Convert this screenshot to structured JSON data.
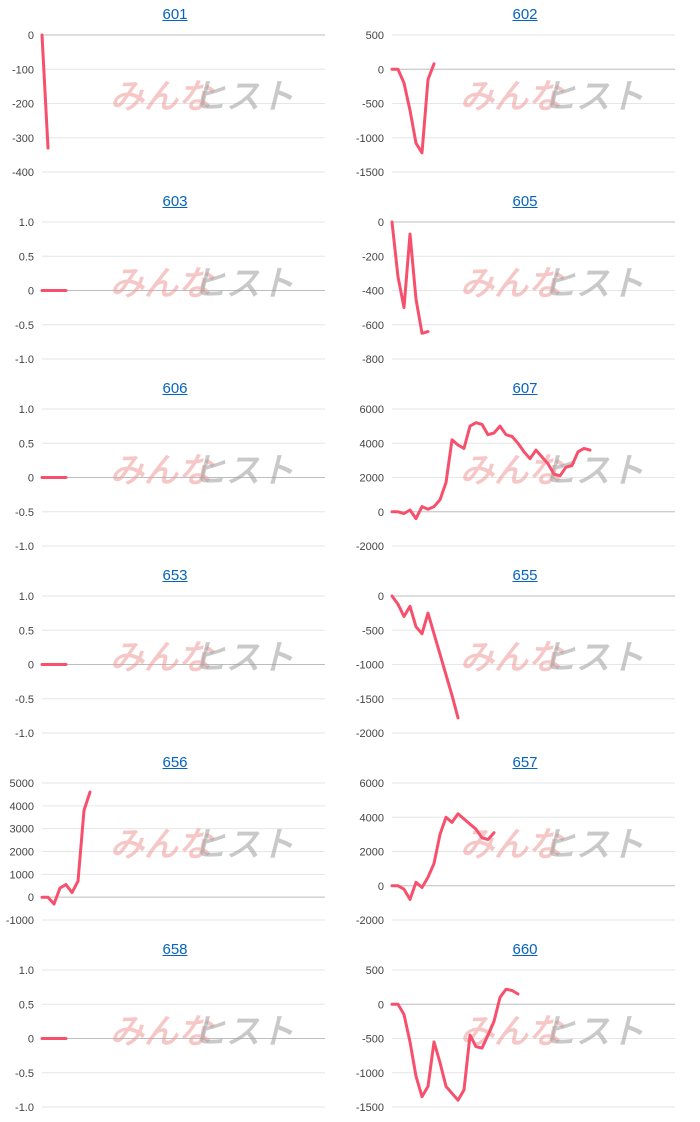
{
  "watermark": {
    "left_text": "みんな",
    "right_text": "ヒスト",
    "left_color": "#ef9a9a",
    "right_color": "#9e9e9e"
  },
  "colors": {
    "series": "#f7506d",
    "title_link": "#0563c1",
    "grid": "#e6e6e6"
  },
  "chart_data": [
    {
      "type": "line",
      "title": "601",
      "ylim": [
        -400,
        0
      ],
      "yticks": [
        0,
        -100,
        -200,
        -300,
        -400
      ],
      "x": [
        1,
        2
      ],
      "series": [
        {
          "values": [
            0,
            -330
          ]
        }
      ]
    },
    {
      "type": "line",
      "title": "602",
      "ylim": [
        -1500,
        500
      ],
      "yticks": [
        500,
        0,
        -500,
        -1000,
        -1500
      ],
      "x": [
        1,
        2,
        3,
        4,
        5,
        6,
        7,
        8
      ],
      "series": [
        {
          "values": [
            0,
            0,
            -200,
            -600,
            -1080,
            -1220,
            -150,
            80
          ]
        }
      ]
    },
    {
      "type": "line",
      "title": "603",
      "ylim": [
        -1.0,
        1.0
      ],
      "yticks": [
        "1.0",
        "0.5",
        "0",
        "-0.5",
        "-1.0"
      ],
      "x": [
        1,
        2,
        3,
        4,
        5
      ],
      "series": [
        {
          "values": [
            0,
            0,
            0,
            0,
            0
          ]
        }
      ]
    },
    {
      "type": "line",
      "title": "605",
      "ylim": [
        -800,
        0
      ],
      "yticks": [
        0,
        -200,
        -400,
        -600,
        -800
      ],
      "x": [
        1,
        2,
        3,
        4,
        5,
        6,
        7
      ],
      "series": [
        {
          "values": [
            0,
            -320,
            -500,
            -70,
            -450,
            -650,
            -640
          ]
        }
      ]
    },
    {
      "type": "line",
      "title": "606",
      "ylim": [
        -1.0,
        1.0
      ],
      "yticks": [
        "1.0",
        "0.5",
        "0",
        "-0.5",
        "-1.0"
      ],
      "x": [
        1,
        2,
        3,
        4,
        5
      ],
      "series": [
        {
          "values": [
            0,
            0,
            0,
            0,
            0
          ]
        }
      ]
    },
    {
      "type": "line",
      "title": "607",
      "ylim": [
        -2000,
        6000
      ],
      "yticks": [
        6000,
        4000,
        2000,
        0,
        -2000
      ],
      "x": [
        1,
        2,
        3,
        4,
        5,
        6,
        7,
        8,
        9,
        10,
        11,
        12,
        13,
        14,
        15,
        16,
        17,
        18,
        19,
        20,
        21,
        22,
        23,
        24,
        25,
        26,
        27,
        28,
        29,
        30,
        31,
        32,
        33,
        34
      ],
      "series": [
        {
          "values": [
            0,
            0,
            -100,
            100,
            -400,
            300,
            150,
            300,
            700,
            1700,
            4200,
            3900,
            3700,
            5000,
            5200,
            5100,
            4500,
            4600,
            5000,
            4500,
            4400,
            4000,
            3500,
            3100,
            3600,
            3200,
            2800,
            2200,
            2100,
            2600,
            2700,
            3500,
            3700,
            3600
          ]
        }
      ]
    },
    {
      "type": "line",
      "title": "653",
      "ylim": [
        -1.0,
        1.0
      ],
      "yticks": [
        "1.0",
        "0.5",
        "0",
        "-0.5",
        "-1.0"
      ],
      "x": [
        1,
        2,
        3,
        4,
        5
      ],
      "series": [
        {
          "values": [
            0,
            0,
            0,
            0,
            0
          ]
        }
      ]
    },
    {
      "type": "line",
      "title": "655",
      "ylim": [
        -2000,
        0
      ],
      "yticks": [
        0,
        -500,
        -1000,
        -1500,
        -2000
      ],
      "x": [
        1,
        2,
        3,
        4,
        5,
        6,
        7,
        8,
        9,
        10,
        11,
        12
      ],
      "series": [
        {
          "values": [
            0,
            -120,
            -300,
            -150,
            -450,
            -550,
            -250,
            -550,
            -850,
            -1150,
            -1450,
            -1780
          ]
        }
      ]
    },
    {
      "type": "line",
      "title": "656",
      "ylim": [
        -1000,
        5000
      ],
      "yticks": [
        5000,
        4000,
        3000,
        2000,
        1000,
        0,
        -1000
      ],
      "x": [
        1,
        2,
        3,
        4,
        5,
        6,
        7,
        8,
        9
      ],
      "series": [
        {
          "values": [
            0,
            0,
            -300,
            400,
            550,
            200,
            700,
            3800,
            4600
          ]
        }
      ]
    },
    {
      "type": "line",
      "title": "657",
      "ylim": [
        -2000,
        6000
      ],
      "yticks": [
        6000,
        4000,
        2000,
        0,
        -2000
      ],
      "x": [
        1,
        2,
        3,
        4,
        5,
        6,
        7,
        8,
        9,
        10,
        11,
        12,
        13,
        14,
        15,
        16,
        17,
        18
      ],
      "series": [
        {
          "values": [
            0,
            0,
            -200,
            -800,
            200,
            -100,
            500,
            1300,
            3000,
            4000,
            3700,
            4200,
            3900,
            3600,
            3300,
            2800,
            2700,
            3100
          ]
        }
      ]
    },
    {
      "type": "line",
      "title": "658",
      "ylim": [
        -1.0,
        1.0
      ],
      "yticks": [
        "1.0",
        "0.5",
        "0",
        "-0.5",
        "-1.0"
      ],
      "x": [
        1,
        2,
        3,
        4,
        5
      ],
      "series": [
        {
          "values": [
            0,
            0,
            0,
            0,
            0
          ]
        }
      ]
    },
    {
      "type": "line",
      "title": "660",
      "ylim": [
        -1500,
        500
      ],
      "yticks": [
        500,
        0,
        -500,
        -1000,
        -1500
      ],
      "x": [
        1,
        2,
        3,
        4,
        5,
        6,
        7,
        8,
        9,
        10,
        11,
        12,
        13,
        14,
        15,
        16,
        17,
        18,
        19,
        20,
        21,
        22
      ],
      "series": [
        {
          "values": [
            0,
            0,
            -150,
            -550,
            -1050,
            -1350,
            -1200,
            -550,
            -850,
            -1200,
            -1300,
            -1400,
            -1250,
            -450,
            -620,
            -640,
            -450,
            -250,
            100,
            220,
            200,
            150
          ]
        }
      ]
    }
  ]
}
